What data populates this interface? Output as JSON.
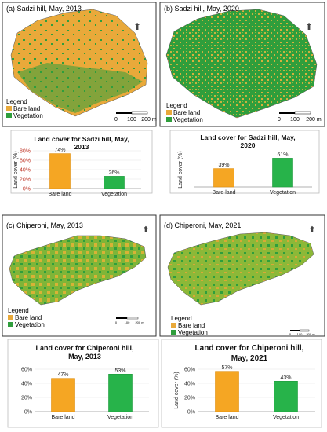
{
  "colors": {
    "bare_land": "#e9a93a",
    "vegetation": "#2f9e3c",
    "bar_bare": "#f5a623",
    "bar_veg": "#27b34a"
  },
  "panels": [
    {
      "title": "(a) Sadzi hill, May, 2013",
      "north_symbol": "north-arrow-icon",
      "legend": {
        "heading": "Legend",
        "items": [
          "Bare land",
          "Vegetation"
        ]
      },
      "scale": {
        "ticks": [
          "0",
          "100",
          "200 m"
        ]
      }
    },
    {
      "title": "(b) Sadzi hill, May, 2020",
      "north_symbol": "north-arrow-icon",
      "legend": {
        "heading": "Legend",
        "items": [
          "Bare land",
          "Vegetation"
        ]
      },
      "scale": {
        "ticks": [
          "0",
          "100",
          "200 m"
        ]
      }
    },
    {
      "title": "(c) Chiperoni, May, 2013",
      "north_symbol": "north-arrow-icon",
      "legend": {
        "heading": "Legend",
        "items": [
          "Bare land",
          "Vegetation"
        ]
      },
      "scale": {
        "ticks": [
          "0",
          "100",
          "200 m"
        ]
      }
    },
    {
      "title": "(d) Chiperoni, May, 2021",
      "north_symbol": "north-arrow-icon",
      "legend": {
        "heading": "Legend",
        "items": [
          "Bare land",
          "Vegetation"
        ]
      },
      "scale": {
        "ticks": [
          "0",
          "100",
          "200 m"
        ]
      }
    }
  ],
  "chart_data": [
    {
      "type": "bar",
      "title": [
        "Land cover for Sadzi hill, May,",
        "2013"
      ],
      "ylabel": "Land cover (%)",
      "categories": [
        "Bare land",
        "Vegetation"
      ],
      "values": [
        74,
        26
      ],
      "labels": [
        "74%",
        "26%"
      ],
      "yticks": [
        "0%",
        "20%",
        "40%",
        "60%",
        "80%"
      ],
      "ylim": [
        0,
        80
      ],
      "tick_color": "#c0392b"
    },
    {
      "type": "bar",
      "title": [
        "Land cover for Sadzi hill, May,",
        "2020"
      ],
      "ylabel": "Land cover (%)",
      "categories": [
        "Bare land",
        "Vegetation"
      ],
      "values": [
        39,
        61
      ],
      "labels": [
        "39%",
        "61%"
      ],
      "yticks": [],
      "ylim": [
        0,
        80
      ]
    },
    {
      "type": "bar",
      "title": [
        "Land cover for Chiperoni hill,",
        "May, 2013"
      ],
      "ylabel": "",
      "categories": [
        "Bare land",
        "Vegetation"
      ],
      "values": [
        47,
        53
      ],
      "labels": [
        "47%",
        "53%"
      ],
      "yticks": [
        "0%",
        "20%",
        "40%",
        "60%"
      ],
      "ylim": [
        0,
        60
      ]
    },
    {
      "type": "bar",
      "title": [
        "Land cover for Chiperoni hill,",
        "May, 2021"
      ],
      "ylabel": "Land cover (%)",
      "categories": [
        "Bare land",
        "Vegetation"
      ],
      "values": [
        57,
        43
      ],
      "labels": [
        "57%",
        "43%"
      ],
      "yticks": [
        "0%",
        "20%",
        "40%",
        "60%"
      ],
      "ylim": [
        0,
        60
      ]
    }
  ]
}
